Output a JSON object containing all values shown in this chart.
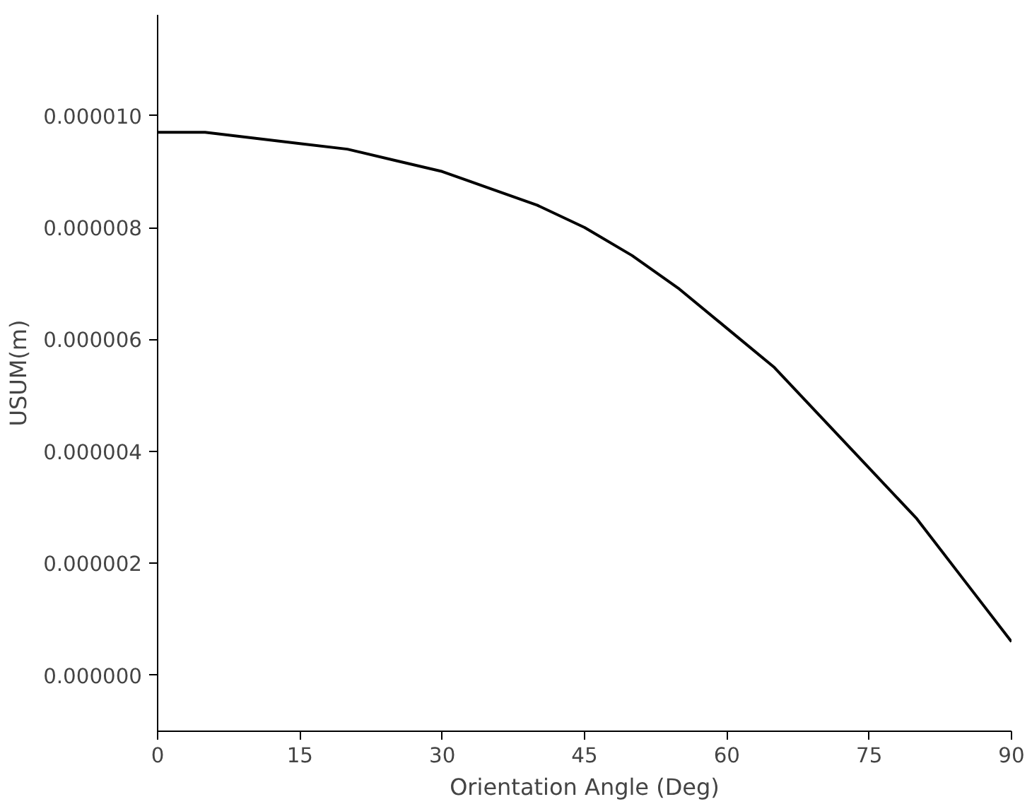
{
  "chart_data": {
    "type": "line",
    "xlabel": "Orientation Angle (Deg)",
    "ylabel": "USUM(m)",
    "x": [
      0,
      5,
      10,
      15,
      20,
      25,
      30,
      35,
      40,
      45,
      50,
      55,
      60,
      65,
      70,
      75,
      80,
      85,
      90
    ],
    "series": [
      {
        "color": "#000000",
        "values": [
          9.7e-06,
          9.7e-06,
          9.6e-06,
          9.5e-06,
          9.4e-06,
          9.2e-06,
          9e-06,
          8.7e-06,
          8.4e-06,
          8e-06,
          7.5e-06,
          6.9e-06,
          6.2e-06,
          5.5e-06,
          4.6e-06,
          3.7e-06,
          2.8e-06,
          1.7e-06,
          6e-07
        ]
      }
    ],
    "xlim": [
      0,
      90
    ],
    "xticks": [
      0,
      15,
      30,
      45,
      60,
      75,
      90
    ],
    "ylim": [
      -1e-06,
      1.18e-05
    ],
    "yticks": [
      {
        "value": 0,
        "label": "0.000000"
      },
      {
        "value": 2e-06,
        "label": "0.000002"
      },
      {
        "value": 4e-06,
        "label": "0.000004"
      },
      {
        "value": 6e-06,
        "label": "0.000006"
      },
      {
        "value": 8e-06,
        "label": "0.000008"
      },
      {
        "value": 1e-05,
        "label": "0.000010"
      }
    ],
    "grid": false,
    "marker": "none",
    "line_style": "solid"
  }
}
